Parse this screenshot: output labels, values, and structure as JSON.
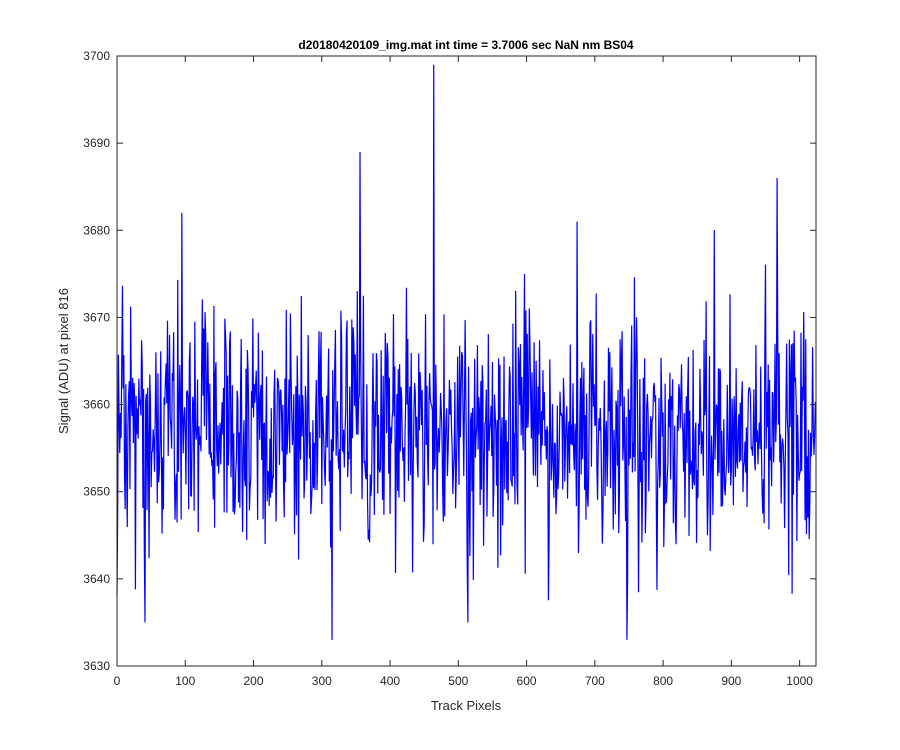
{
  "chart_data": {
    "type": "line",
    "title": "d20180420109_img.mat int time = 3.7006 sec  NaN nm BS04",
    "xlabel": "Track Pixels",
    "ylabel": "Signal (ADU) at pixel 816",
    "xlim": [
      0,
      1024
    ],
    "ylim": [
      3630,
      3700
    ],
    "xticks": [
      0,
      100,
      200,
      300,
      400,
      500,
      600,
      700,
      800,
      900,
      1000
    ],
    "yticks": [
      3630,
      3640,
      3650,
      3660,
      3670,
      3680,
      3690,
      3700
    ],
    "grid": false,
    "legend": "none",
    "series": [
      {
        "color": "#0000ff",
        "noise": {
          "points": 1024,
          "mean": 3657,
          "std": 6.5,
          "min": 3633,
          "max": 3699
        },
        "notable_points": [
          {
            "x": 0,
            "y": 3638
          },
          {
            "x": 41,
            "y": 3635
          },
          {
            "x": 95,
            "y": 3682
          },
          {
            "x": 356,
            "y": 3689
          },
          {
            "x": 315,
            "y": 3633
          },
          {
            "x": 464,
            "y": 3699
          },
          {
            "x": 514,
            "y": 3635
          },
          {
            "x": 674,
            "y": 3681
          },
          {
            "x": 747,
            "y": 3633
          },
          {
            "x": 967,
            "y": 3686
          }
        ]
      }
    ]
  }
}
